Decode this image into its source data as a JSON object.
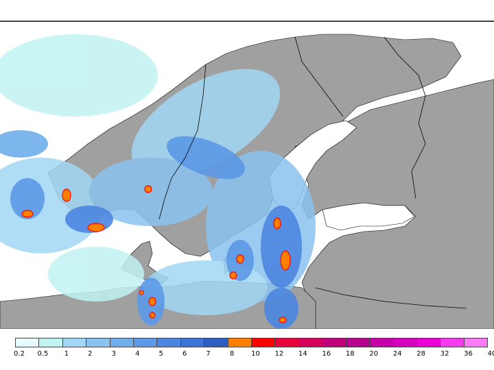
{
  "map": {
    "region": "Scandinavia and the Baltic Sea",
    "field": "precipitation intensity",
    "land_color": "#a0a0a0",
    "sea_color": "#ffffff",
    "border_color": "#000000"
  },
  "legend": {
    "colors": [
      "#e6fbfb",
      "#c1f3f3",
      "#a2d8f5",
      "#8ac3ef",
      "#6fadeb",
      "#5c99e6",
      "#4c86e0",
      "#3b74d6",
      "#2d5fc1",
      "#ff8000",
      "#ff0000",
      "#e8003a",
      "#d4005b",
      "#bf0078",
      "#b7008f",
      "#c500a8",
      "#d800bf",
      "#ea00d6",
      "#f53cec",
      "#fb7bf5"
    ],
    "labels": [
      "0.2",
      "0.5",
      "1",
      "2",
      "3",
      "4",
      "5",
      "6",
      "7",
      "8",
      "10",
      "12",
      "14",
      "16",
      "18",
      "20",
      "24",
      "28",
      "32",
      "36",
      "40"
    ]
  }
}
